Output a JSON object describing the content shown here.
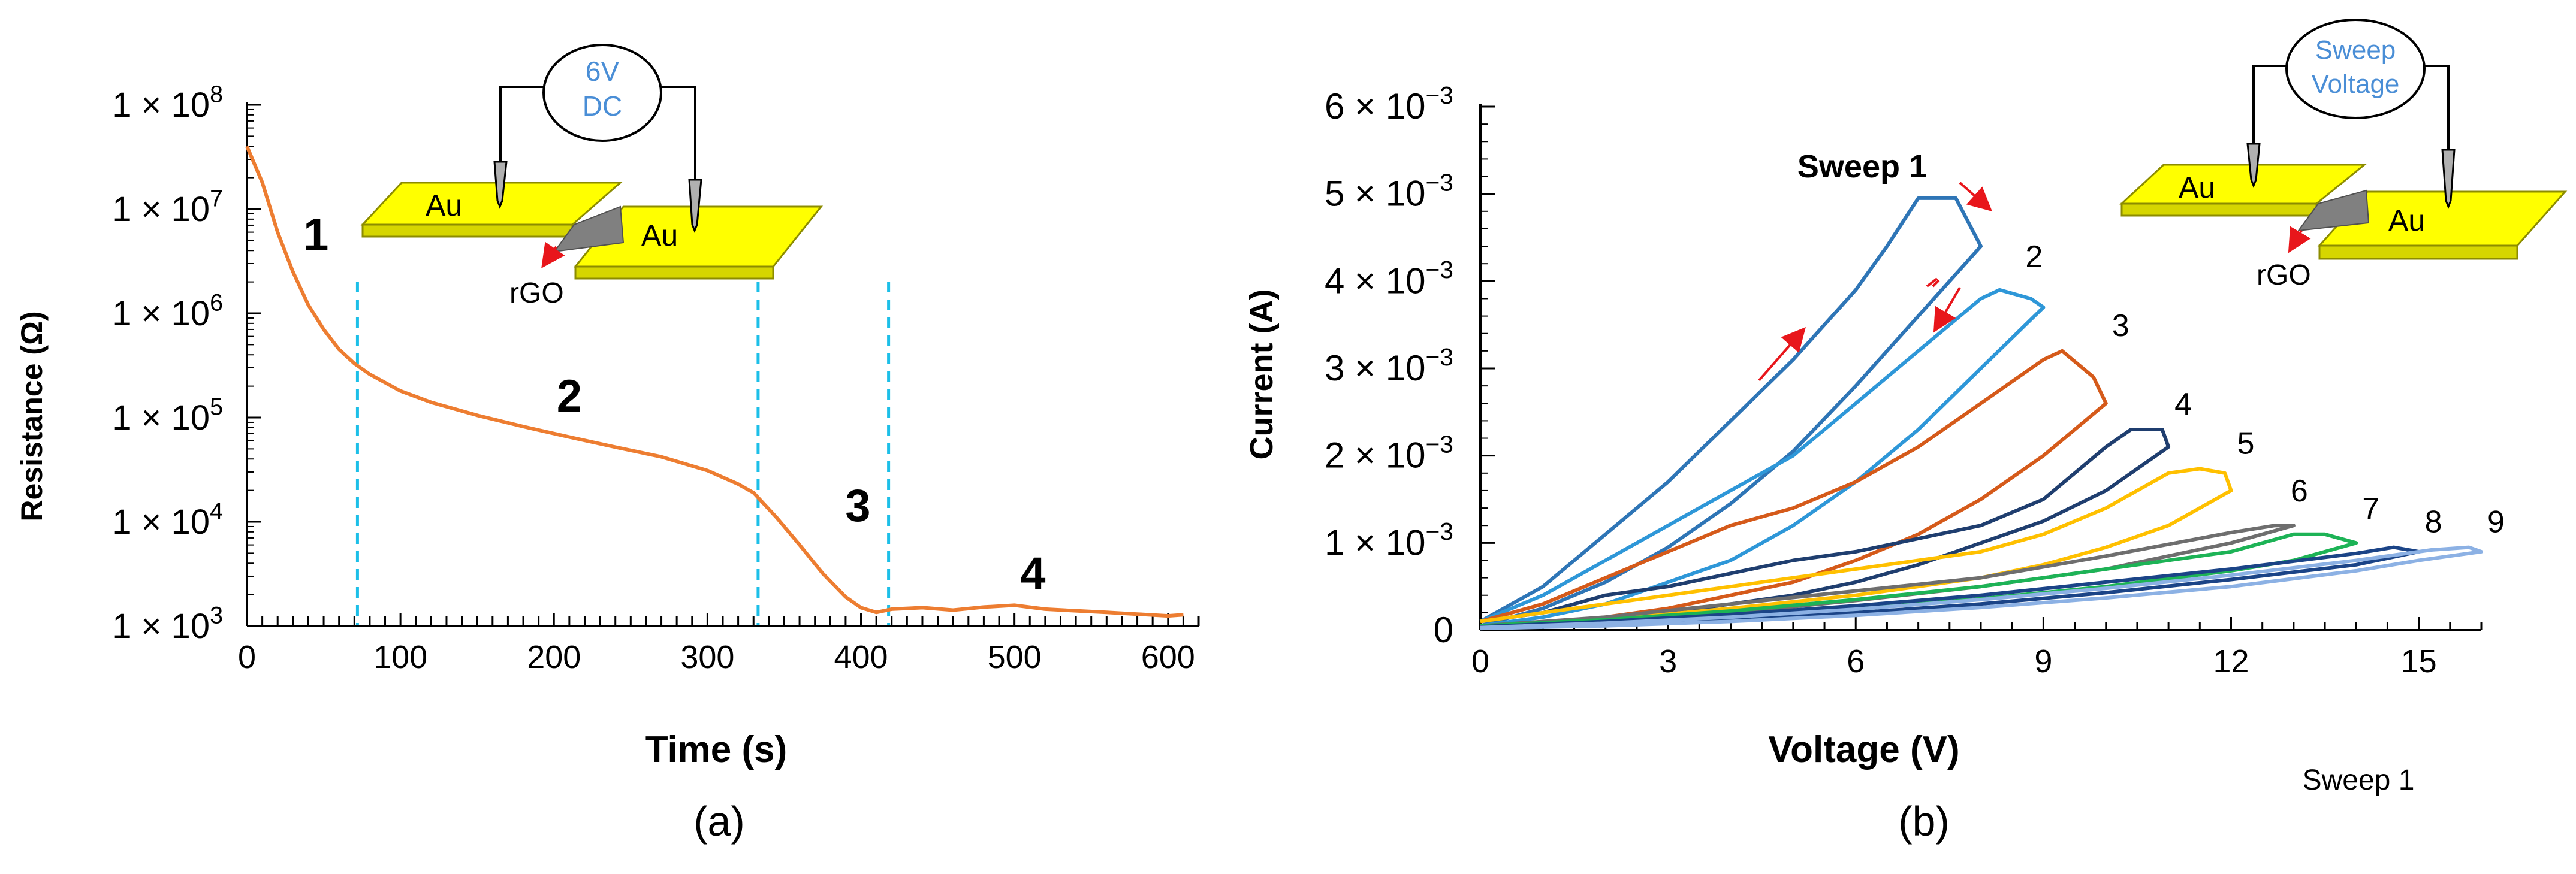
{
  "colors": {
    "orange": "#ED7D31",
    "dash_blue": "#1CBFE8",
    "gold": "#E6E600",
    "arrow_red": "#E8161B",
    "label_blue": "#4A8ED6",
    "axis": "#000000",
    "sweep_colors": [
      "#2E75B6",
      "#2E97D8",
      "#D55A1A",
      "#1F3E6F",
      "#FFC000",
      "#6E6E6E",
      "#1DB356",
      "#1B4487",
      "#8CB1E4"
    ]
  },
  "panel_a": {
    "caption": "(a)",
    "chart_data": {
      "type": "line",
      "xlabel": "Time (s)",
      "ylabel": "Resistance (Ω)",
      "yscale": "log",
      "xlim": [
        0,
        620
      ],
      "ylim_log10": [
        3,
        8
      ],
      "x_ticks": [
        "0",
        "100",
        "200",
        "300",
        "400",
        "500",
        "600"
      ],
      "y_ticks": [
        {
          "base": "1 × 10",
          "exp": "8"
        },
        {
          "base": "1 × 10",
          "exp": "7"
        },
        {
          "base": "1 × 10",
          "exp": "6"
        },
        {
          "base": "1 × 10",
          "exp": "5"
        },
        {
          "base": "1 × 10",
          "exp": "4"
        },
        {
          "base": "1 × 10",
          "exp": "3"
        }
      ],
      "series": [
        {
          "name": "resistance",
          "x": [
            0,
            10,
            20,
            30,
            40,
            50,
            60,
            70,
            80,
            100,
            120,
            150,
            180,
            210,
            240,
            270,
            300,
            320,
            330,
            345,
            360,
            375,
            390,
            400,
            410,
            420,
            440,
            460,
            480,
            500,
            520,
            540,
            560,
            580,
            600,
            610
          ],
          "y": [
            40000000,
            18000000,
            6000000,
            2500000,
            1200000,
            700000,
            450000,
            330000,
            260000,
            180000,
            140000,
            105000,
            82000,
            65000,
            52000,
            42000,
            31000,
            23000,
            19000,
            11000,
            6000,
            3200,
            1900,
            1500,
            1350,
            1450,
            1500,
            1420,
            1520,
            1580,
            1450,
            1400,
            1350,
            1300,
            1250,
            1280
          ]
        }
      ],
      "dividers_x": [
        72,
        333,
        418
      ],
      "stage_labels": [
        {
          "text": "1",
          "x": 45,
          "y_log": 6.75
        },
        {
          "text": "2",
          "x": 210,
          "y_log": 5.2
        },
        {
          "text": "3",
          "x": 398,
          "y_log": 4.15
        },
        {
          "text": "4",
          "x": 512,
          "y_log": 3.5
        }
      ]
    },
    "inset": {
      "source_label_line1": "6V",
      "source_label_line2": "DC",
      "electrode_left": "Au",
      "electrode_right": "Au",
      "material": "rGO"
    }
  },
  "panel_b": {
    "caption": "(b)",
    "footnote": "Sweep 1",
    "chart_data": {
      "type": "line",
      "xlabel": "Voltage (V)",
      "ylabel": "Current (A)",
      "xlim": [
        0,
        16
      ],
      "ylim": [
        0,
        0.006
      ],
      "x_ticks": [
        "0",
        "3",
        "6",
        "9",
        "12",
        "15"
      ],
      "y_ticks": [
        {
          "value": 0,
          "base": "0",
          "exp": ""
        },
        {
          "value": 0.001,
          "base": "1 × 10",
          "exp": "−3"
        },
        {
          "value": 0.002,
          "base": "2 × 10",
          "exp": "−3"
        },
        {
          "value": 0.003,
          "base": "3 × 10",
          "exp": "−3"
        },
        {
          "value": 0.004,
          "base": "4 × 10",
          "exp": "−3"
        },
        {
          "value": 0.005,
          "base": "5 × 10",
          "exp": "−3"
        },
        {
          "value": 0.006,
          "base": "6 × 10",
          "exp": "−3"
        }
      ],
      "series": [
        {
          "name": "Sweep 1",
          "label": "Sweep 1",
          "up_x": [
            0,
            1,
            2,
            3,
            4,
            5,
            6,
            6.5,
            7,
            7.6,
            8.0
          ],
          "up_y": [
            0.0001,
            0.0005,
            0.0011,
            0.0017,
            0.0024,
            0.0031,
            0.0039,
            0.0044,
            0.00495,
            0.00495,
            0.0044
          ],
          "down_x": [
            8.0,
            7,
            6,
            5,
            4,
            3,
            2,
            1,
            0
          ],
          "down_y": [
            0.0044,
            0.0036,
            0.0028,
            0.00205,
            0.00145,
            0.00095,
            0.00055,
            0.00025,
            5e-05
          ]
        },
        {
          "name": "Sweep 2",
          "label": "2",
          "up_x": [
            0,
            1,
            2,
            3,
            4,
            5,
            6,
            7,
            8,
            8.3,
            8.8,
            9.0
          ],
          "up_y": [
            0.0001,
            0.0004,
            0.0008,
            0.0012,
            0.0016,
            0.002,
            0.0026,
            0.0032,
            0.0038,
            0.0039,
            0.0038,
            0.0037
          ],
          "down_x": [
            9.0,
            8,
            7,
            6,
            5,
            4,
            3,
            2,
            1,
            0
          ],
          "down_y": [
            0.0037,
            0.003,
            0.0023,
            0.0017,
            0.0012,
            0.0008,
            0.00055,
            0.0003,
            0.00015,
            5e-05
          ]
        },
        {
          "name": "Sweep 3",
          "label": "3",
          "up_x": [
            0,
            1,
            2,
            3,
            4,
            5,
            6,
            7,
            8,
            9,
            9.3,
            9.8,
            10.0
          ],
          "up_y": [
            0.0001,
            0.0003,
            0.0006,
            0.0009,
            0.0012,
            0.0014,
            0.0017,
            0.0021,
            0.0026,
            0.0031,
            0.0032,
            0.0029,
            0.0026
          ],
          "down_x": [
            10.0,
            9,
            8,
            7,
            6,
            5,
            4,
            3,
            2,
            1,
            0
          ],
          "down_y": [
            0.0026,
            0.002,
            0.0015,
            0.0011,
            0.0008,
            0.00055,
            0.0004,
            0.00025,
            0.00015,
            8e-05,
            3e-05
          ]
        },
        {
          "name": "Sweep 4",
          "label": "4",
          "up_x": [
            0,
            1,
            2,
            3,
            4,
            5,
            6,
            7,
            8,
            9,
            10,
            10.4,
            10.9,
            11.0
          ],
          "up_y": [
            0.0001,
            0.0002,
            0.0004,
            0.0005,
            0.00065,
            0.0008,
            0.0009,
            0.00105,
            0.0012,
            0.0015,
            0.0021,
            0.0023,
            0.0023,
            0.0021
          ],
          "down_x": [
            11.0,
            10,
            9,
            8,
            7,
            6,
            5,
            4,
            3,
            2,
            1,
            0
          ],
          "down_y": [
            0.0021,
            0.0016,
            0.00125,
            0.001,
            0.00075,
            0.00055,
            0.0004,
            0.0003,
            0.0002,
            0.00012,
            6e-05,
            3e-05
          ]
        },
        {
          "name": "Sweep 5",
          "label": "5",
          "up_x": [
            0,
            2,
            4,
            6,
            8,
            9,
            10,
            11,
            11.5,
            11.9,
            12.0
          ],
          "up_y": [
            0.0001,
            0.0003,
            0.0005,
            0.0007,
            0.0009,
            0.0011,
            0.0014,
            0.0018,
            0.00185,
            0.0018,
            0.0016
          ],
          "down_x": [
            12.0,
            11,
            10,
            9,
            8,
            6,
            4,
            2,
            0
          ],
          "down_y": [
            0.0016,
            0.0012,
            0.00095,
            0.00075,
            0.0006,
            0.0004,
            0.00025,
            0.00012,
            3e-05
          ]
        },
        {
          "name": "Sweep 6",
          "label": "6",
          "up_x": [
            0,
            2,
            4,
            6,
            8,
            10,
            12,
            12.7,
            13.0
          ],
          "up_y": [
            5e-05,
            0.00015,
            0.0003,
            0.00045,
            0.0006,
            0.00085,
            0.00112,
            0.0012,
            0.0012
          ],
          "down_x": [
            13.0,
            12,
            10,
            8,
            6,
            4,
            2,
            0
          ],
          "down_y": [
            0.0012,
            0.001,
            0.0007,
            0.0005,
            0.00034,
            0.0002,
            0.0001,
            3e-05
          ]
        },
        {
          "name": "Sweep 7",
          "label": "7",
          "up_x": [
            0,
            2,
            4,
            6,
            8,
            10,
            12,
            13,
            13.5,
            14.0
          ],
          "up_y": [
            5e-05,
            0.00012,
            0.00022,
            0.00035,
            0.0005,
            0.0007,
            0.0009,
            0.0011,
            0.0011,
            0.001
          ],
          "down_x": [
            14.0,
            13,
            12,
            10,
            8,
            6,
            4,
            2,
            0
          ],
          "down_y": [
            0.001,
            0.0008,
            0.00068,
            0.0005,
            0.00036,
            0.00024,
            0.00014,
            7e-05,
            3e-05
          ]
        },
        {
          "name": "Sweep 8",
          "label": "8",
          "up_x": [
            0,
            2,
            4,
            6,
            8,
            10,
            12,
            14,
            14.6,
            15.0
          ],
          "up_y": [
            4e-05,
            0.0001,
            0.00018,
            0.00028,
            0.0004,
            0.00055,
            0.0007,
            0.00088,
            0.00095,
            0.0009
          ],
          "down_x": [
            15.0,
            14,
            12,
            10,
            8,
            6,
            4,
            2,
            0
          ],
          "down_y": [
            0.0009,
            0.00075,
            0.00058,
            0.00043,
            0.0003,
            0.0002,
            0.00012,
            6e-05,
            2e-05
          ]
        },
        {
          "name": "Sweep 9",
          "label": "9",
          "up_x": [
            0,
            2,
            4,
            6,
            8,
            10,
            12,
            14,
            15.2,
            15.8,
            16.0
          ],
          "up_y": [
            3e-05,
            8e-05,
            0.00015,
            0.00024,
            0.00035,
            0.00048,
            0.00063,
            0.0008,
            0.00092,
            0.00095,
            0.0009
          ],
          "down_x": [
            16.0,
            15,
            14,
            12,
            10,
            8,
            6,
            4,
            2,
            0
          ],
          "down_y": [
            0.0009,
            0.0008,
            0.00068,
            0.0005,
            0.00037,
            0.00026,
            0.00017,
            0.0001,
            5e-05,
            2e-05
          ]
        }
      ]
    },
    "inset": {
      "source_label_line1": "Sweep",
      "source_label_line2": "Voltage",
      "electrode_left": "Au",
      "electrode_right": "Au",
      "material": "rGO"
    }
  }
}
